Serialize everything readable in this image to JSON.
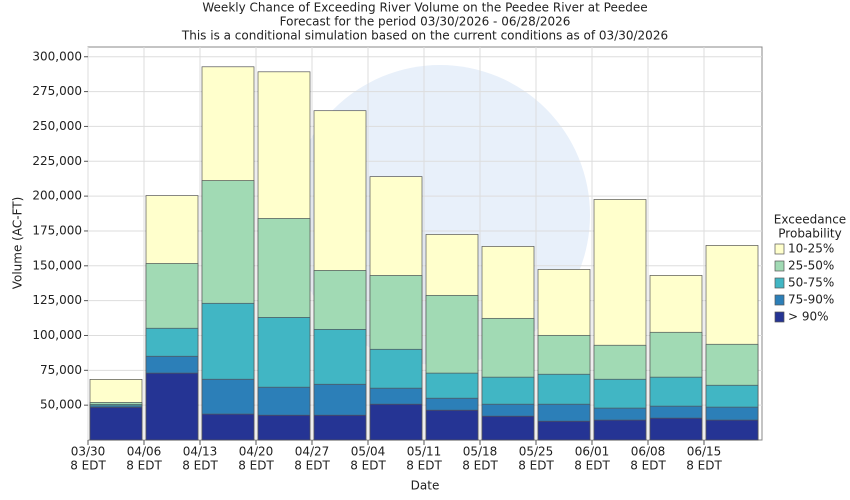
{
  "chart_data": {
    "type": "bar",
    "title": [
      "Weekly Chance of Exceeding River Volume on the Peedee River at Peedee",
      "Forecast for the period 03/30/2026 - 06/28/2026",
      "This is a conditional simulation based on the current conditions as of 03/30/2026"
    ],
    "x_label": "Date",
    "y_label": "Volume (AC-FT)",
    "categories": [
      "03/30",
      "04/06",
      "04/13",
      "04/20",
      "04/27",
      "05/04",
      "05/11",
      "05/18",
      "05/25",
      "06/01",
      "06/08",
      "06/15"
    ],
    "category_time": "8 EDT",
    "legend_title": [
      "Exceedance",
      "Probability"
    ],
    "series": [
      {
        "name": "10-25%",
        "color": "#ffffcc",
        "values": [
          68500,
          200400,
          292800,
          289200,
          261300,
          214000,
          172500,
          163900,
          147400,
          197600,
          143100,
          164600
        ]
      },
      {
        "name": "25-50%",
        "color": "#a1dab4",
        "values": [
          52000,
          151700,
          211200,
          184000,
          146700,
          143100,
          128800,
          112300,
          100100,
          93000,
          102300,
          93700
        ]
      },
      {
        "name": "50-75%",
        "color": "#41b6c4",
        "values": [
          50500,
          105200,
          123100,
          113000,
          104400,
          90100,
          73000,
          70100,
          72200,
          68600,
          70100,
          64300
        ]
      },
      {
        "name": "75-90%",
        "color": "#2c7fb8",
        "values": [
          49500,
          85100,
          68600,
          62900,
          65000,
          62200,
          55000,
          50700,
          50700,
          47900,
          49300,
          48600
        ]
      },
      {
        "name": "> 90%",
        "color": "#253494",
        "values": [
          48500,
          73000,
          43600,
          42800,
          42800,
          50700,
          46400,
          42100,
          38500,
          39300,
          40700,
          39300
        ]
      }
    ],
    "ylim": [
      25000,
      307000
    ],
    "yticks": [
      {
        "value": 50000,
        "label": "50,000"
      },
      {
        "value": 75000,
        "label": "75,000"
      },
      {
        "value": 100000,
        "label": "100,000"
      },
      {
        "value": 125000,
        "label": "125,000"
      },
      {
        "value": 150000,
        "label": "150,000"
      },
      {
        "value": 175000,
        "label": "175,000"
      },
      {
        "value": 200000,
        "label": "200,000"
      },
      {
        "value": 225000,
        "label": "225,000"
      },
      {
        "value": 250000,
        "label": "250,000"
      },
      {
        "value": 275000,
        "label": "275,000"
      },
      {
        "value": 300000,
        "label": "300,000"
      }
    ],
    "grid": true
  }
}
